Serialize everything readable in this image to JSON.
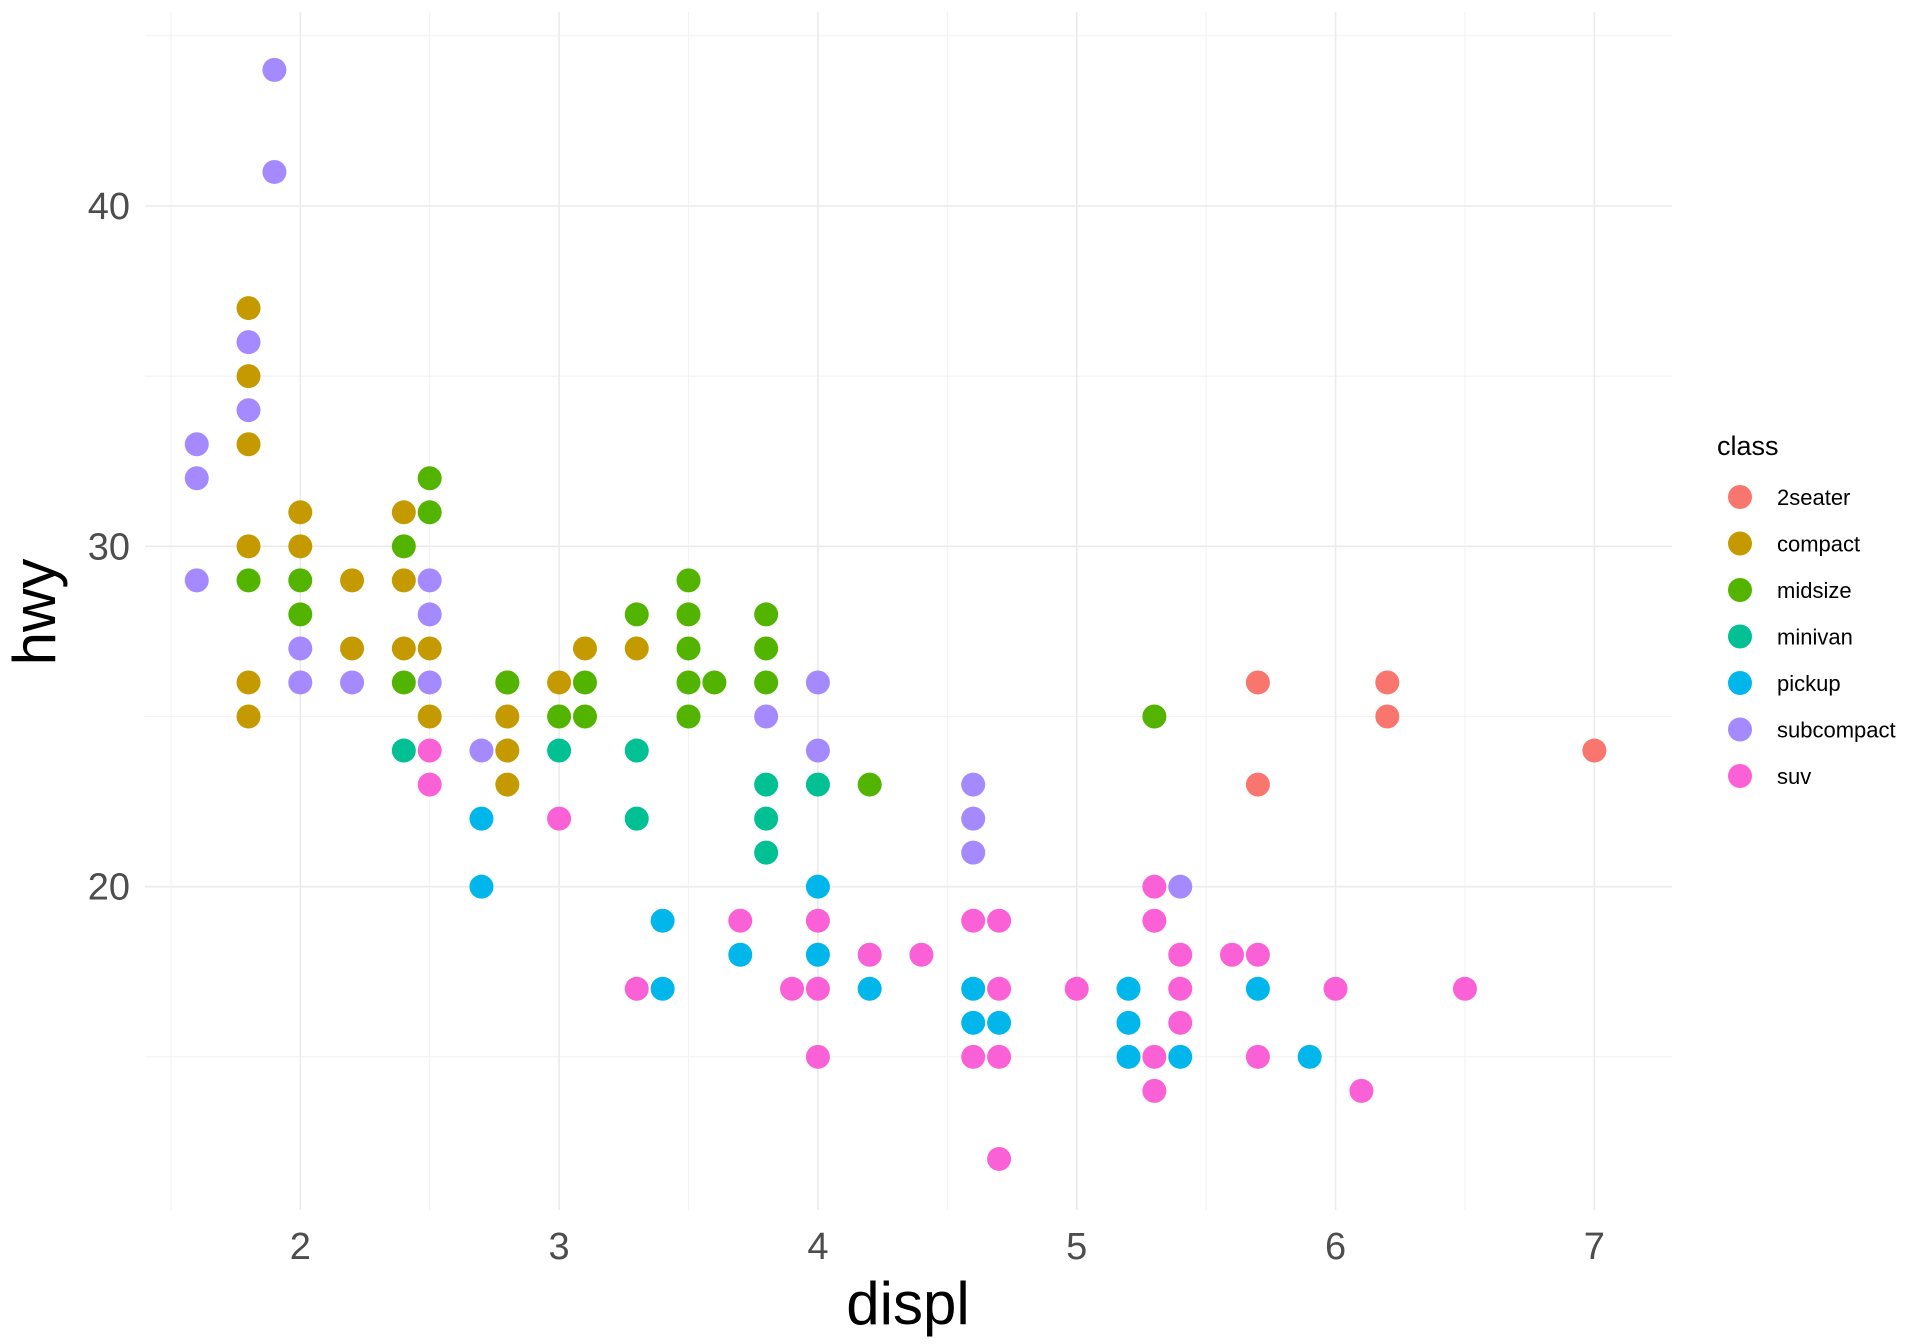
{
  "chart_data": {
    "type": "scatter",
    "title": "",
    "xlabel": "displ",
    "ylabel": "hwy",
    "xlim": [
      1.4,
      7.3
    ],
    "ylim": [
      10.5,
      45.7
    ],
    "x_ticks": [
      "2",
      "3",
      "4",
      "5",
      "6",
      "7"
    ],
    "y_ticks": [
      "20",
      "30",
      "40"
    ],
    "grid": true,
    "legend": {
      "title": "class",
      "position": "right"
    },
    "series": [
      {
        "name": "2seater",
        "color": "#F8766D",
        "points": [
          [
            5.7,
            26
          ],
          [
            5.7,
            23
          ],
          [
            6.2,
            26
          ],
          [
            6.2,
            25
          ],
          [
            7.0,
            24
          ]
        ]
      },
      {
        "name": "compact",
        "color": "#C49A00",
        "points": [
          [
            1.8,
            37
          ],
          [
            1.8,
            35
          ],
          [
            1.8,
            33
          ],
          [
            1.8,
            30
          ],
          [
            1.8,
            26
          ],
          [
            1.8,
            25
          ],
          [
            2.0,
            31
          ],
          [
            2.0,
            30
          ],
          [
            2.2,
            29
          ],
          [
            2.2,
            27
          ],
          [
            2.4,
            31
          ],
          [
            2.4,
            29
          ],
          [
            2.4,
            27
          ],
          [
            2.5,
            27
          ],
          [
            2.5,
            25
          ],
          [
            2.8,
            26
          ],
          [
            2.8,
            25
          ],
          [
            2.8,
            24
          ],
          [
            2.8,
            23
          ],
          [
            3.0,
            26
          ],
          [
            3.1,
            27
          ],
          [
            3.3,
            27
          ]
        ]
      },
      {
        "name": "midsize",
        "color": "#53B400",
        "points": [
          [
            1.8,
            29
          ],
          [
            2.0,
            29
          ],
          [
            2.0,
            28
          ],
          [
            2.4,
            30
          ],
          [
            2.4,
            26
          ],
          [
            2.5,
            32
          ],
          [
            2.5,
            31
          ],
          [
            2.8,
            26
          ],
          [
            3.0,
            25
          ],
          [
            3.1,
            26
          ],
          [
            3.1,
            25
          ],
          [
            3.3,
            28
          ],
          [
            3.5,
            29
          ],
          [
            3.5,
            28
          ],
          [
            3.5,
            27
          ],
          [
            3.5,
            26
          ],
          [
            3.5,
            25
          ],
          [
            3.6,
            26
          ],
          [
            3.8,
            28
          ],
          [
            3.8,
            27
          ],
          [
            3.8,
            26
          ],
          [
            4.2,
            23
          ],
          [
            5.3,
            25
          ]
        ]
      },
      {
        "name": "minivan",
        "color": "#00C094",
        "points": [
          [
            2.4,
            24
          ],
          [
            3.0,
            24
          ],
          [
            3.3,
            24
          ],
          [
            3.3,
            22
          ],
          [
            3.8,
            23
          ],
          [
            3.8,
            22
          ],
          [
            3.8,
            21
          ],
          [
            4.0,
            23
          ]
        ]
      },
      {
        "name": "pickup",
        "color": "#00B6EB",
        "points": [
          [
            2.7,
            22
          ],
          [
            2.7,
            20
          ],
          [
            3.4,
            19
          ],
          [
            3.4,
            17
          ],
          [
            3.7,
            18
          ],
          [
            4.0,
            20
          ],
          [
            4.0,
            18
          ],
          [
            4.2,
            17
          ],
          [
            4.6,
            17
          ],
          [
            4.6,
            16
          ],
          [
            4.7,
            16
          ],
          [
            5.2,
            17
          ],
          [
            5.2,
            16
          ],
          [
            5.2,
            15
          ],
          [
            5.4,
            15
          ],
          [
            5.7,
            17
          ],
          [
            5.9,
            15
          ]
        ]
      },
      {
        "name": "subcompact",
        "color": "#A58AFF",
        "points": [
          [
            1.6,
            33
          ],
          [
            1.6,
            32
          ],
          [
            1.6,
            29
          ],
          [
            1.9,
            44
          ],
          [
            1.9,
            41
          ],
          [
            1.8,
            36
          ],
          [
            1.8,
            34
          ],
          [
            2.0,
            27
          ],
          [
            2.0,
            26
          ],
          [
            2.2,
            26
          ],
          [
            2.5,
            29
          ],
          [
            2.5,
            28
          ],
          [
            2.5,
            26
          ],
          [
            2.7,
            24
          ],
          [
            3.8,
            25
          ],
          [
            4.0,
            26
          ],
          [
            4.0,
            24
          ],
          [
            4.6,
            23
          ],
          [
            4.6,
            22
          ],
          [
            4.6,
            21
          ],
          [
            5.4,
            20
          ]
        ]
      },
      {
        "name": "suv",
        "color": "#FB61D7",
        "points": [
          [
            2.5,
            24
          ],
          [
            2.5,
            23
          ],
          [
            3.0,
            22
          ],
          [
            3.3,
            17
          ],
          [
            3.7,
            19
          ],
          [
            3.9,
            17
          ],
          [
            4.0,
            19
          ],
          [
            4.0,
            17
          ],
          [
            4.0,
            15
          ],
          [
            4.2,
            18
          ],
          [
            4.4,
            18
          ],
          [
            4.6,
            19
          ],
          [
            4.6,
            15
          ],
          [
            4.7,
            19
          ],
          [
            4.7,
            17
          ],
          [
            4.7,
            15
          ],
          [
            4.7,
            12
          ],
          [
            5.0,
            17
          ],
          [
            5.3,
            20
          ],
          [
            5.3,
            19
          ],
          [
            5.3,
            15
          ],
          [
            5.3,
            14
          ],
          [
            5.4,
            18
          ],
          [
            5.4,
            17
          ],
          [
            5.4,
            16
          ],
          [
            5.6,
            18
          ],
          [
            5.7,
            18
          ],
          [
            5.7,
            15
          ],
          [
            6.0,
            17
          ],
          [
            6.1,
            14
          ],
          [
            6.5,
            17
          ]
        ]
      }
    ]
  }
}
